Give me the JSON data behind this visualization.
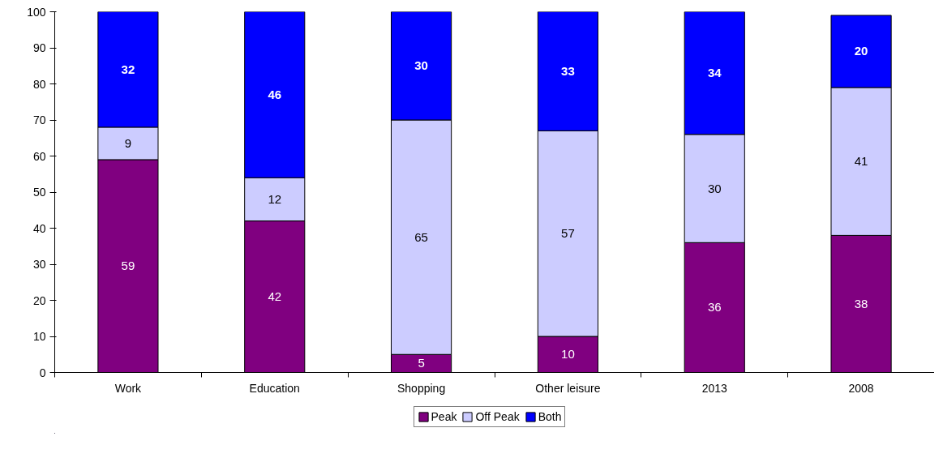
{
  "chart_data": {
    "type": "bar",
    "stacked": true,
    "categories": [
      "Work",
      "Education",
      "Shopping",
      "Other leisure",
      "2013",
      "2008"
    ],
    "series": [
      {
        "name": "Peak",
        "color": "#800080",
        "values": [
          59,
          42,
          5,
          10,
          36,
          38
        ]
      },
      {
        "name": "Off Peak",
        "color": "#ccccff",
        "values": [
          9,
          12,
          65,
          57,
          30,
          41
        ]
      },
      {
        "name": "Both",
        "color": "#0000ff",
        "values": [
          32,
          46,
          30,
          33,
          34,
          20
        ]
      }
    ],
    "ylim": [
      0,
      100
    ],
    "yticks": [
      0,
      10,
      20,
      30,
      40,
      50,
      60,
      70,
      80,
      90,
      100
    ],
    "grid": false,
    "legend": "bottom",
    "data_labels": true
  }
}
